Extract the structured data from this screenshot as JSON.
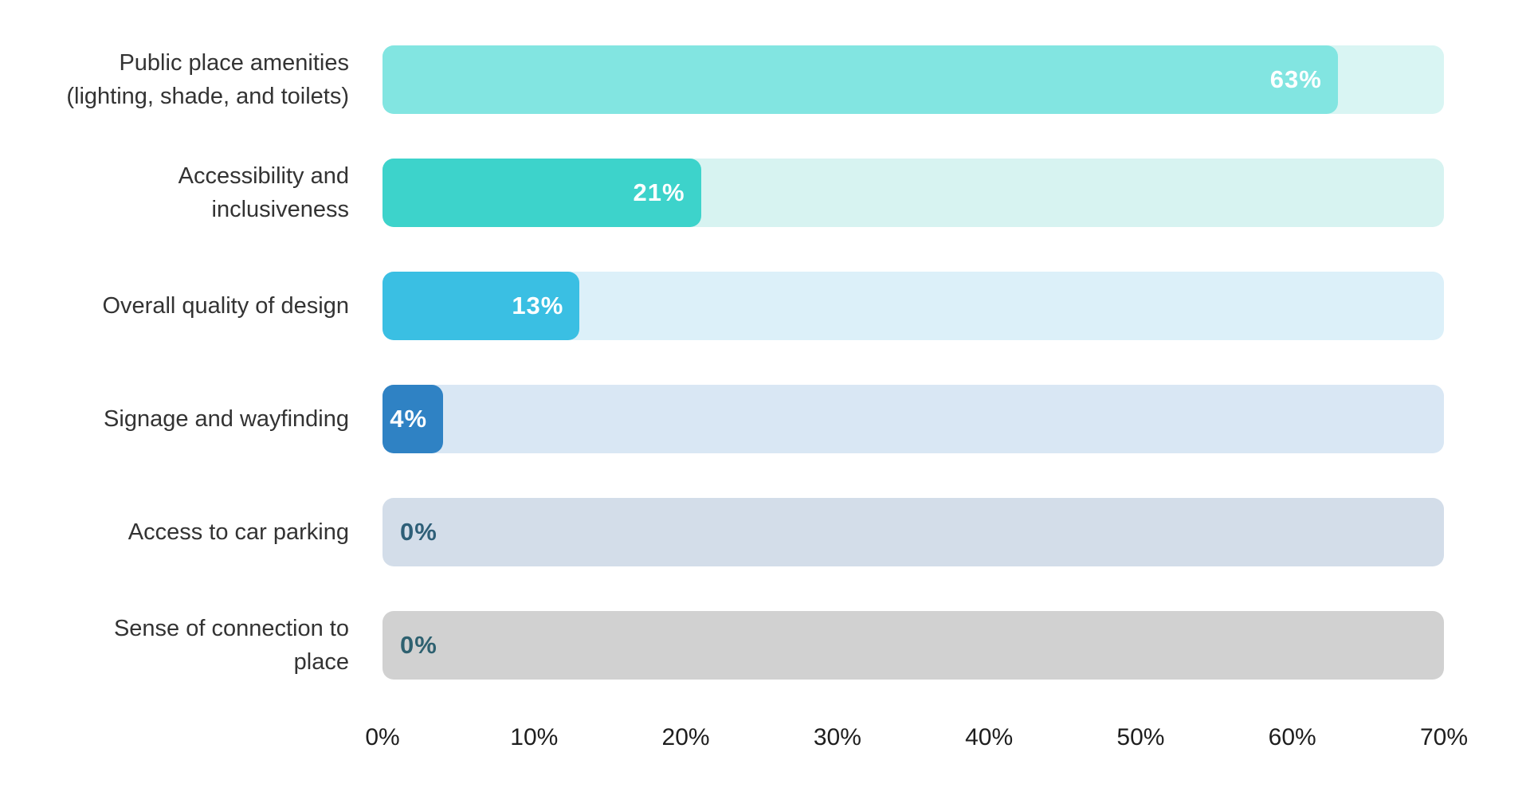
{
  "chart_data": {
    "type": "bar",
    "orientation": "horizontal",
    "title": "",
    "xlabel": "",
    "ylabel": "",
    "categories": [
      "Public place amenities (lighting, shade, and toilets)",
      "Accessibility and inclusiveness",
      "Overall quality of design",
      "Signage and wayfinding",
      "Access to car parking",
      "Sense of connection to place"
    ],
    "values": [
      63,
      21,
      13,
      4,
      0,
      0
    ],
    "value_labels": [
      "63%",
      "21%",
      "13%",
      "4%",
      "0%",
      "0%"
    ],
    "xlim": [
      0,
      70
    ],
    "x_ticks": [
      "0%",
      "10%",
      "20%",
      "30%",
      "40%",
      "50%",
      "60%",
      "70%"
    ],
    "grid": false,
    "legend": false,
    "bar_colors": [
      "#82e5e1",
      "#3dd3cb",
      "#3abfe3",
      "#2f82c4",
      null,
      null
    ],
    "track_colors": [
      "#d9f5f3",
      "#d7f3f1",
      "#dcf0f9",
      "#d9e7f4",
      "#d3dde9",
      "#d1d1d1"
    ]
  },
  "rows": [
    {
      "label": "Public place amenities\n(lighting, shade, and toilets)",
      "value_label": "63%",
      "pct": 63,
      "fill_color": "#82e5e1",
      "track_color": "#d9f5f3",
      "value_color": "#ffffff"
    },
    {
      "label": "Accessibility and\ninclusiveness",
      "value_label": "21%",
      "pct": 21,
      "fill_color": "#3dd3cb",
      "track_color": "#d7f3f1",
      "value_color": "#ffffff"
    },
    {
      "label": "Overall quality of design",
      "value_label": "13%",
      "pct": 13,
      "fill_color": "#3abfe3",
      "track_color": "#dcf0f9",
      "value_color": "#ffffff"
    },
    {
      "label": "Signage and wayfinding",
      "value_label": "4%",
      "pct": 4,
      "fill_color": "#2f82c4",
      "track_color": "#d9e7f4",
      "value_color": "#ffffff"
    },
    {
      "label": "Access to car parking",
      "value_label": "0%",
      "pct": 0,
      "fill_color": null,
      "track_color": "#d3dde9",
      "value_color": "#2e5f78"
    },
    {
      "label": "Sense of connection to\nplace",
      "value_label": "0%",
      "pct": 0,
      "fill_color": null,
      "track_color": "#d1d1d1",
      "value_color": "#2e6170"
    }
  ],
  "axis": {
    "ticks": [
      "0%",
      "10%",
      "20%",
      "30%",
      "40%",
      "50%",
      "60%",
      "70%"
    ],
    "max": 70
  }
}
